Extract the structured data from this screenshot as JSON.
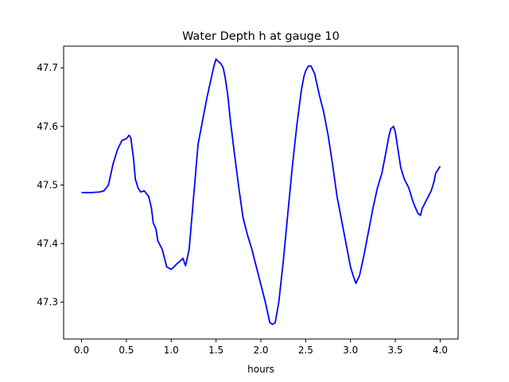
{
  "chart_data": {
    "type": "line",
    "title": "Water Depth h at gauge 10",
    "xlabel": "hours",
    "ylabel": "",
    "xlim": [
      -0.2,
      4.2
    ],
    "ylim": [
      47.237,
      47.737
    ],
    "xticks": [
      0.0,
      0.5,
      1.0,
      1.5,
      2.0,
      2.5,
      3.0,
      3.5,
      4.0
    ],
    "xtick_labels": [
      "0.0",
      "0.5",
      "1.0",
      "1.5",
      "2.0",
      "2.5",
      "3.0",
      "3.5",
      "4.0"
    ],
    "yticks": [
      47.3,
      47.4,
      47.5,
      47.6,
      47.7
    ],
    "ytick_labels": [
      "47.3",
      "47.4",
      "47.5",
      "47.6",
      "47.7"
    ],
    "grid": false,
    "series": [
      {
        "color": "#0000ff",
        "x": [
          0.0,
          0.1,
          0.2,
          0.25,
          0.3,
          0.35,
          0.4,
          0.45,
          0.5,
          0.53,
          0.55,
          0.58,
          0.6,
          0.63,
          0.66,
          0.7,
          0.75,
          0.78,
          0.8,
          0.83,
          0.85,
          0.9,
          0.95,
          1.0,
          1.03,
          1.06,
          1.1,
          1.13,
          1.16,
          1.2,
          1.25,
          1.3,
          1.35,
          1.4,
          1.45,
          1.48,
          1.5,
          1.53,
          1.55,
          1.58,
          1.6,
          1.63,
          1.66,
          1.7,
          1.75,
          1.8,
          1.85,
          1.9,
          1.95,
          2.0,
          2.05,
          2.1,
          2.13,
          2.16,
          2.2,
          2.25,
          2.3,
          2.35,
          2.4,
          2.45,
          2.48,
          2.5,
          2.53,
          2.56,
          2.6,
          2.65,
          2.7,
          2.75,
          2.8,
          2.85,
          2.9,
          2.95,
          3.0,
          3.03,
          3.06,
          3.1,
          3.15,
          3.2,
          3.25,
          3.3,
          3.35,
          3.4,
          3.43,
          3.45,
          3.48,
          3.5,
          3.53,
          3.56,
          3.6,
          3.65,
          3.7,
          3.75,
          3.78,
          3.8,
          3.85,
          3.9,
          3.93,
          3.95,
          4.0
        ],
        "y": [
          47.487,
          47.487,
          47.488,
          47.49,
          47.5,
          47.535,
          47.56,
          47.576,
          47.579,
          47.585,
          47.58,
          47.545,
          47.51,
          47.495,
          47.488,
          47.49,
          47.48,
          47.46,
          47.435,
          47.425,
          47.405,
          47.39,
          47.36,
          47.356,
          47.36,
          47.365,
          47.37,
          47.375,
          47.362,
          47.39,
          47.48,
          47.57,
          47.61,
          47.65,
          47.685,
          47.705,
          47.715,
          47.71,
          47.708,
          47.7,
          47.685,
          47.655,
          47.61,
          47.56,
          47.5,
          47.445,
          47.415,
          47.39,
          47.36,
          47.33,
          47.3,
          47.265,
          47.262,
          47.265,
          47.3,
          47.37,
          47.45,
          47.53,
          47.6,
          47.66,
          47.685,
          47.695,
          47.703,
          47.703,
          47.69,
          47.655,
          47.625,
          47.585,
          47.535,
          47.48,
          47.44,
          47.4,
          47.36,
          47.345,
          47.332,
          47.345,
          47.38,
          47.42,
          47.46,
          47.495,
          47.52,
          47.56,
          47.585,
          47.596,
          47.6,
          47.59,
          47.56,
          47.53,
          47.51,
          47.495,
          47.47,
          47.452,
          47.448,
          47.46,
          47.475,
          47.49,
          47.505,
          47.52,
          47.532
        ]
      }
    ]
  }
}
